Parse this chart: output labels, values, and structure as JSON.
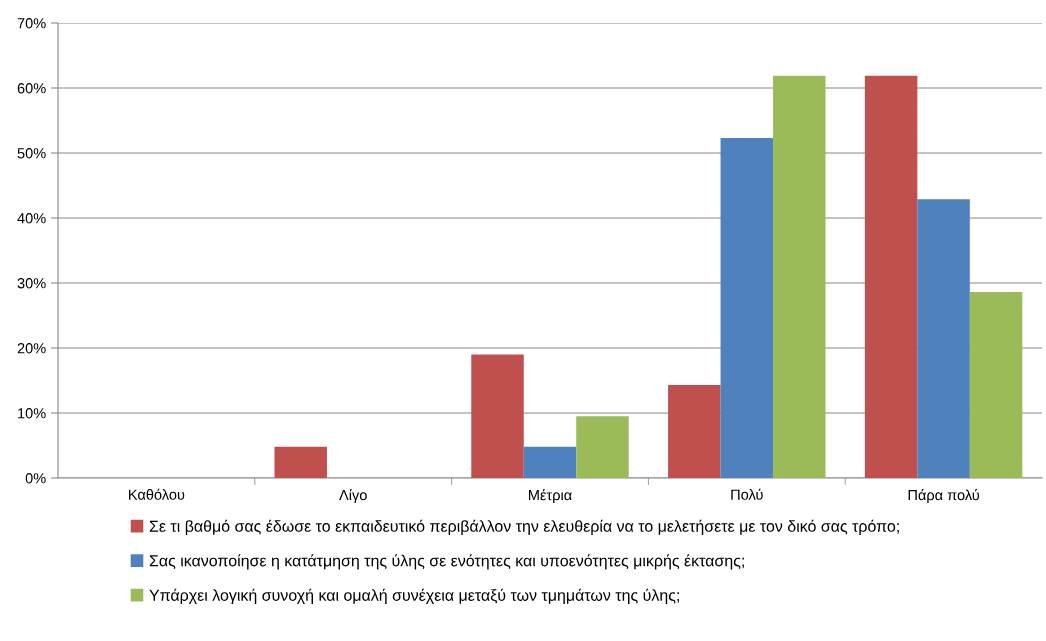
{
  "chart_data": {
    "type": "bar",
    "categories": [
      "Καθόλου",
      "Λίγο",
      "Μέτρια",
      "Πολύ",
      "Πάρα πολύ"
    ],
    "series": [
      {
        "name": "Σε τι βαθμό σας έδωσε το εκπαιδευτικό περιβάλλον την ελευθερία να το μελετήσετε με τον δικό σας τρόπο;",
        "color": "#c0504d",
        "values": [
          0,
          4.8,
          19.0,
          14.3,
          61.9
        ]
      },
      {
        "name": "Σας ικανοποίησε η κατάτμηση της ύλης σε ενότητες και υποενότητες μικρής έκτασης;",
        "color": "#4f81bd",
        "values": [
          0,
          0,
          4.8,
          52.3,
          42.9
        ]
      },
      {
        "name": "Υπάρχει λογική συνοχή και ομαλή συνέχεια μεταξύ των τμημάτων της ύλης;",
        "color": "#9bbb59",
        "values": [
          0,
          0,
          9.5,
          61.9,
          28.6
        ]
      }
    ],
    "ylim": [
      0,
      70
    ],
    "yticks": [
      {
        "value": 0,
        "label": "0%"
      },
      {
        "value": 10,
        "label": "10%"
      },
      {
        "value": 20,
        "label": "20%"
      },
      {
        "value": 30,
        "label": "30%"
      },
      {
        "value": 40,
        "label": "40%"
      },
      {
        "value": 50,
        "label": "50%"
      },
      {
        "value": 60,
        "label": "60%"
      },
      {
        "value": 70,
        "label": "70%"
      }
    ],
    "grid": "y",
    "legend": "bottom"
  }
}
